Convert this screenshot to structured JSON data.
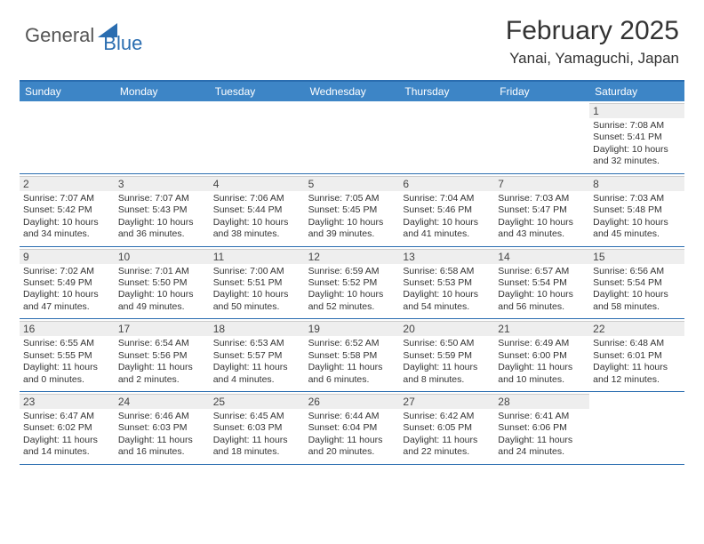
{
  "logo": {
    "text1": "General",
    "text2": "Blue",
    "color1": "#555555",
    "color2": "#2a6db0"
  },
  "title": "February 2025",
  "location": "Yanai, Yamaguchi, Japan",
  "colors": {
    "header_bg": "#3d85c6",
    "header_text": "#ffffff",
    "border": "#2a6db0",
    "daynum_bg": "#eeeeee",
    "text": "#333333"
  },
  "day_names": [
    "Sunday",
    "Monday",
    "Tuesday",
    "Wednesday",
    "Thursday",
    "Friday",
    "Saturday"
  ],
  "weeks": [
    [
      {
        "n": "",
        "sunrise": "",
        "sunset": "",
        "daylight": ""
      },
      {
        "n": "",
        "sunrise": "",
        "sunset": "",
        "daylight": ""
      },
      {
        "n": "",
        "sunrise": "",
        "sunset": "",
        "daylight": ""
      },
      {
        "n": "",
        "sunrise": "",
        "sunset": "",
        "daylight": ""
      },
      {
        "n": "",
        "sunrise": "",
        "sunset": "",
        "daylight": ""
      },
      {
        "n": "",
        "sunrise": "",
        "sunset": "",
        "daylight": ""
      },
      {
        "n": "1",
        "sunrise": "7:08 AM",
        "sunset": "5:41 PM",
        "daylight": "10 hours and 32 minutes."
      }
    ],
    [
      {
        "n": "2",
        "sunrise": "7:07 AM",
        "sunset": "5:42 PM",
        "daylight": "10 hours and 34 minutes."
      },
      {
        "n": "3",
        "sunrise": "7:07 AM",
        "sunset": "5:43 PM",
        "daylight": "10 hours and 36 minutes."
      },
      {
        "n": "4",
        "sunrise": "7:06 AM",
        "sunset": "5:44 PM",
        "daylight": "10 hours and 38 minutes."
      },
      {
        "n": "5",
        "sunrise": "7:05 AM",
        "sunset": "5:45 PM",
        "daylight": "10 hours and 39 minutes."
      },
      {
        "n": "6",
        "sunrise": "7:04 AM",
        "sunset": "5:46 PM",
        "daylight": "10 hours and 41 minutes."
      },
      {
        "n": "7",
        "sunrise": "7:03 AM",
        "sunset": "5:47 PM",
        "daylight": "10 hours and 43 minutes."
      },
      {
        "n": "8",
        "sunrise": "7:03 AM",
        "sunset": "5:48 PM",
        "daylight": "10 hours and 45 minutes."
      }
    ],
    [
      {
        "n": "9",
        "sunrise": "7:02 AM",
        "sunset": "5:49 PM",
        "daylight": "10 hours and 47 minutes."
      },
      {
        "n": "10",
        "sunrise": "7:01 AM",
        "sunset": "5:50 PM",
        "daylight": "10 hours and 49 minutes."
      },
      {
        "n": "11",
        "sunrise": "7:00 AM",
        "sunset": "5:51 PM",
        "daylight": "10 hours and 50 minutes."
      },
      {
        "n": "12",
        "sunrise": "6:59 AM",
        "sunset": "5:52 PM",
        "daylight": "10 hours and 52 minutes."
      },
      {
        "n": "13",
        "sunrise": "6:58 AM",
        "sunset": "5:53 PM",
        "daylight": "10 hours and 54 minutes."
      },
      {
        "n": "14",
        "sunrise": "6:57 AM",
        "sunset": "5:54 PM",
        "daylight": "10 hours and 56 minutes."
      },
      {
        "n": "15",
        "sunrise": "6:56 AM",
        "sunset": "5:54 PM",
        "daylight": "10 hours and 58 minutes."
      }
    ],
    [
      {
        "n": "16",
        "sunrise": "6:55 AM",
        "sunset": "5:55 PM",
        "daylight": "11 hours and 0 minutes."
      },
      {
        "n": "17",
        "sunrise": "6:54 AM",
        "sunset": "5:56 PM",
        "daylight": "11 hours and 2 minutes."
      },
      {
        "n": "18",
        "sunrise": "6:53 AM",
        "sunset": "5:57 PM",
        "daylight": "11 hours and 4 minutes."
      },
      {
        "n": "19",
        "sunrise": "6:52 AM",
        "sunset": "5:58 PM",
        "daylight": "11 hours and 6 minutes."
      },
      {
        "n": "20",
        "sunrise": "6:50 AM",
        "sunset": "5:59 PM",
        "daylight": "11 hours and 8 minutes."
      },
      {
        "n": "21",
        "sunrise": "6:49 AM",
        "sunset": "6:00 PM",
        "daylight": "11 hours and 10 minutes."
      },
      {
        "n": "22",
        "sunrise": "6:48 AM",
        "sunset": "6:01 PM",
        "daylight": "11 hours and 12 minutes."
      }
    ],
    [
      {
        "n": "23",
        "sunrise": "6:47 AM",
        "sunset": "6:02 PM",
        "daylight": "11 hours and 14 minutes."
      },
      {
        "n": "24",
        "sunrise": "6:46 AM",
        "sunset": "6:03 PM",
        "daylight": "11 hours and 16 minutes."
      },
      {
        "n": "25",
        "sunrise": "6:45 AM",
        "sunset": "6:03 PM",
        "daylight": "11 hours and 18 minutes."
      },
      {
        "n": "26",
        "sunrise": "6:44 AM",
        "sunset": "6:04 PM",
        "daylight": "11 hours and 20 minutes."
      },
      {
        "n": "27",
        "sunrise": "6:42 AM",
        "sunset": "6:05 PM",
        "daylight": "11 hours and 22 minutes."
      },
      {
        "n": "28",
        "sunrise": "6:41 AM",
        "sunset": "6:06 PM",
        "daylight": "11 hours and 24 minutes."
      },
      {
        "n": "",
        "sunrise": "",
        "sunset": "",
        "daylight": ""
      }
    ]
  ],
  "labels": {
    "sunrise": "Sunrise:",
    "sunset": "Sunset:",
    "daylight": "Daylight:"
  }
}
